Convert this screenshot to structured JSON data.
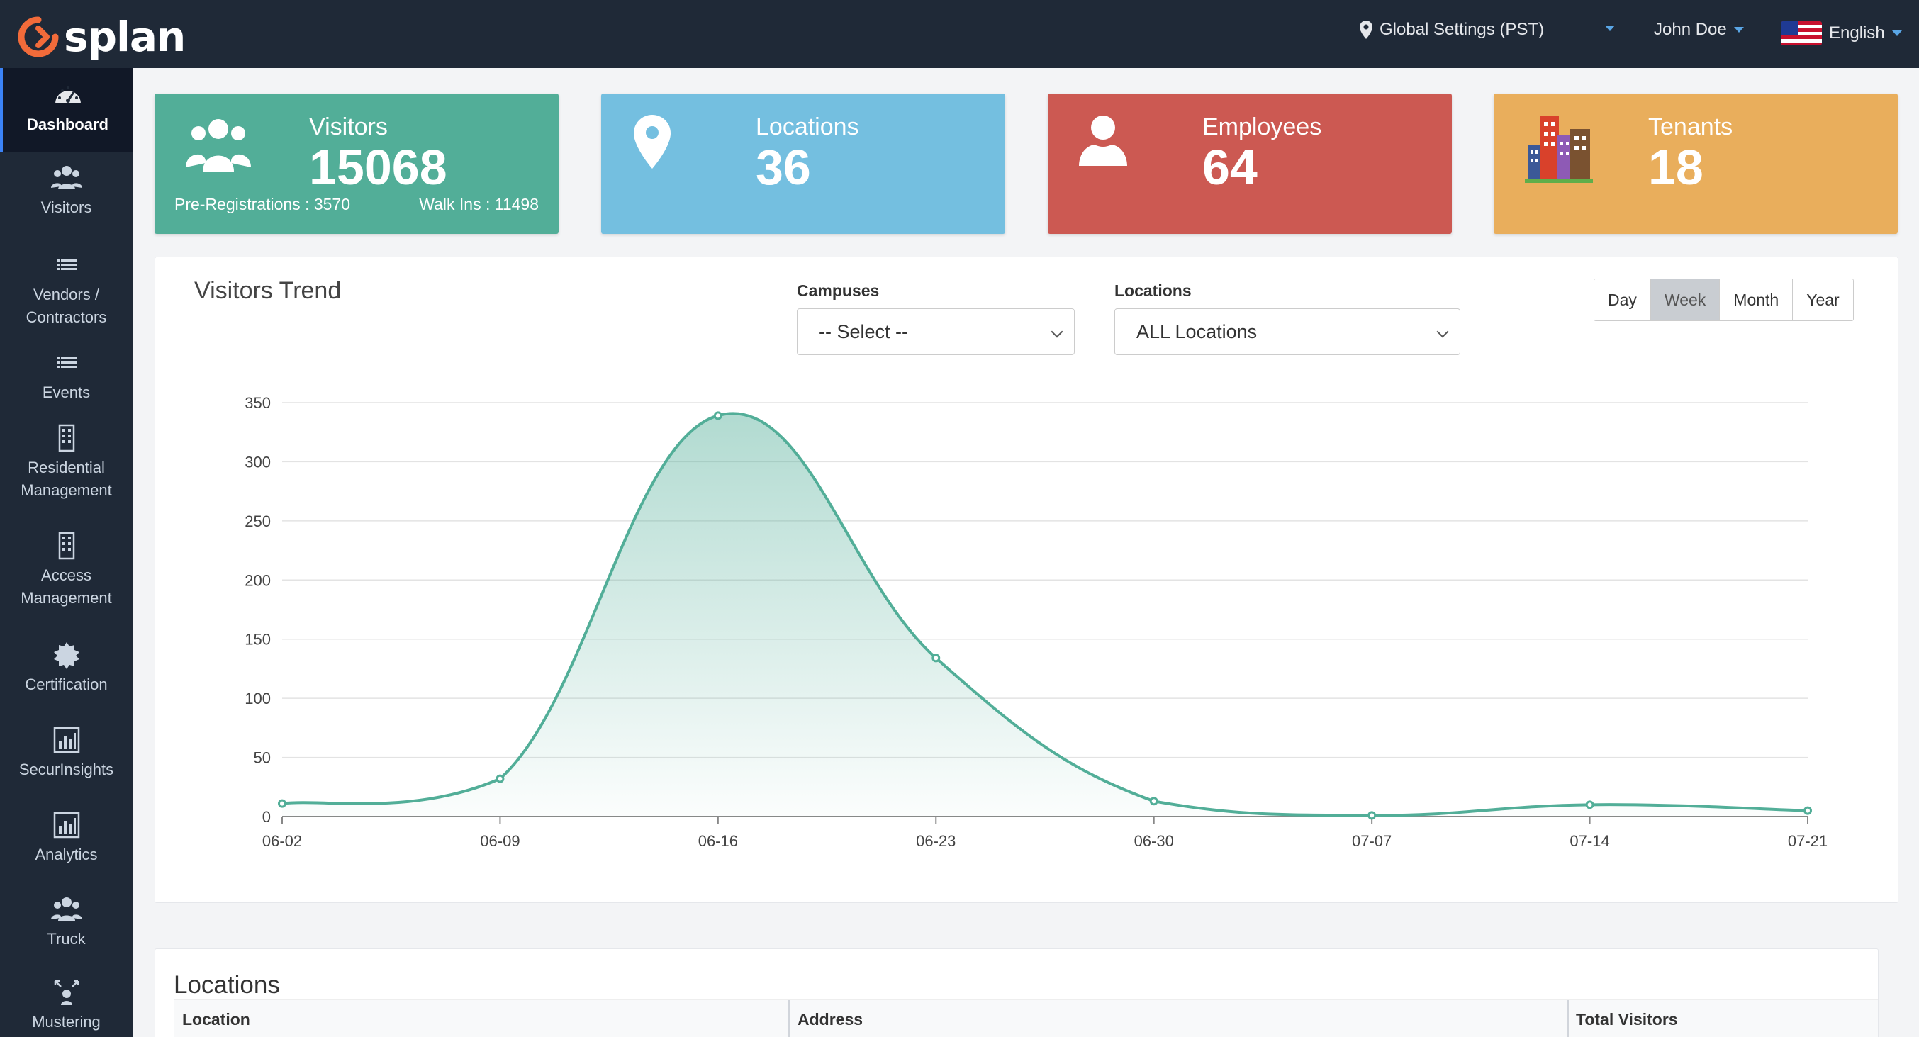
{
  "app": {
    "logo_text": "splan"
  },
  "topbar": {
    "global_settings": "Global Settings (PST)",
    "user_name": "John Doe",
    "language": "English"
  },
  "sidebar": {
    "items": [
      {
        "label": "Dashboard",
        "icon": "dashboard-icon"
      },
      {
        "label": "Visitors",
        "icon": "users-icon"
      },
      {
        "label": "Vendors /",
        "label2": "Contractors",
        "icon": "list-icon"
      },
      {
        "label": "Events",
        "icon": "list-icon"
      },
      {
        "label": "Residential",
        "label2": "Management",
        "icon": "building-icon"
      },
      {
        "label": "Access",
        "label2": "Management",
        "icon": "building-icon"
      },
      {
        "label": "Certification",
        "icon": "badge-icon"
      },
      {
        "label": "SecurInsights",
        "icon": "bar-chart-icon"
      },
      {
        "label": "Analytics",
        "icon": "bar-chart-icon"
      },
      {
        "label": "Truck",
        "icon": "users-icon"
      },
      {
        "label": "Mustering",
        "icon": "mustering-icon"
      }
    ]
  },
  "cards": {
    "visitors": {
      "title": "Visitors",
      "value": "15068",
      "pre_reg": "Pre-Registrations : 3570",
      "walk_ins": "Walk Ins : 11498",
      "color": "#52ae98"
    },
    "locations": {
      "title": "Locations",
      "value": "36",
      "color": "#74bfe0"
    },
    "employees": {
      "title": "Employees",
      "value": "64",
      "color": "#cc5952"
    },
    "tenants": {
      "title": "Tenants",
      "value": "18",
      "color": "#e9ae5c"
    }
  },
  "trend": {
    "title": "Visitors Trend",
    "campuses_label": "Campuses",
    "campuses_value": "-- Select --",
    "locations_label": "Locations",
    "locations_value": "ALL Locations",
    "ranges": [
      "Day",
      "Week",
      "Month",
      "Year"
    ],
    "selected_range": "Week"
  },
  "chart_data": {
    "type": "area",
    "x": [
      "06-02",
      "06-09",
      "06-16",
      "06-23",
      "06-30",
      "07-07",
      "07-14",
      "07-21"
    ],
    "values": [
      11,
      32,
      339,
      134,
      13,
      1,
      10,
      5
    ],
    "ylim": [
      0,
      350
    ],
    "yticks": [
      0,
      50,
      100,
      150,
      200,
      250,
      300,
      350
    ],
    "grid": true,
    "color": "#52ae98"
  },
  "locations_table": {
    "title": "Locations",
    "columns": [
      "Location",
      "Address",
      "Total Visitors"
    ]
  }
}
